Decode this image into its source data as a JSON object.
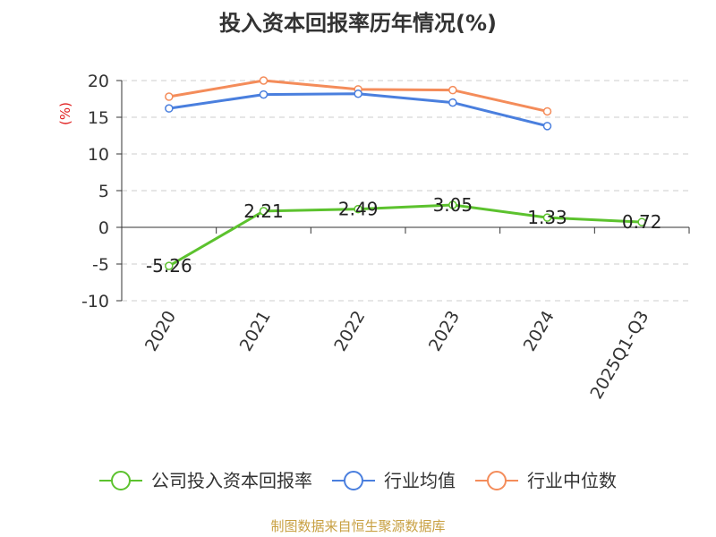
{
  "chart_data": {
    "type": "line",
    "title": "投入资本回报率历年情况(%)",
    "ylabel": "(%)",
    "ylim": [
      -10,
      20
    ],
    "yticks": [
      20,
      15,
      10,
      5,
      0,
      -5,
      -10
    ],
    "grid": true,
    "legend_position": "bottom",
    "categories": [
      "2020",
      "2021",
      "2022",
      "2023",
      "2024",
      "2025Q1-Q3"
    ],
    "series": [
      {
        "name": "公司投入资本回报率",
        "color": "#5cc22e",
        "values": [
          -5.26,
          2.21,
          2.49,
          3.05,
          1.33,
          0.72
        ],
        "labels": [
          "-5.26",
          "2.21",
          "2.49",
          "3.05",
          "1.33",
          "0.72"
        ]
      },
      {
        "name": "行业均值",
        "color": "#4a7fde",
        "values": [
          16.2,
          18.1,
          18.2,
          17.0,
          13.8,
          null
        ]
      },
      {
        "name": "行业中位数",
        "color": "#f48c5a",
        "values": [
          17.8,
          20.0,
          18.8,
          18.7,
          15.8,
          null
        ]
      }
    ],
    "source": "制图数据来自恒生聚源数据库"
  }
}
